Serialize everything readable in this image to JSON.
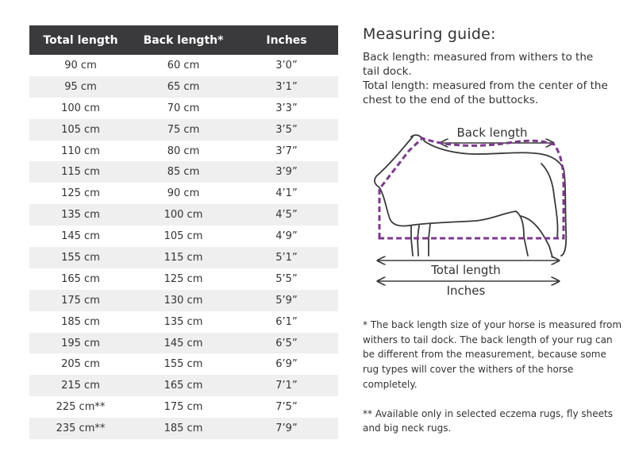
{
  "table": {
    "headers": [
      "Total length",
      "Back length*",
      "Inches"
    ],
    "rows": [
      [
        "90 cm",
        "60 cm",
        "3’0”"
      ],
      [
        "95 cm",
        "65 cm",
        "3’1”"
      ],
      [
        "100 cm",
        "70 cm",
        "3’3”"
      ],
      [
        "105 cm",
        "75 cm",
        "3’5”"
      ],
      [
        "110 cm",
        "80 cm",
        "3’7”"
      ],
      [
        "115 cm",
        "85 cm",
        "3’9”"
      ],
      [
        "125 cm",
        "90 cm",
        "4’1”"
      ],
      [
        "135 cm",
        "100 cm",
        "4’5”"
      ],
      [
        "145 cm",
        "105 cm",
        "4’9”"
      ],
      [
        "155 cm",
        "115 cm",
        "5’1”"
      ],
      [
        "165 cm",
        "125 cm",
        "5’5”"
      ],
      [
        "175 cm",
        "130 cm",
        "5’9”"
      ],
      [
        "185 cm",
        "135 cm",
        "6’1”"
      ],
      [
        "195 cm",
        "145 cm",
        "6’5”"
      ],
      [
        "205 cm",
        "155 cm",
        "6’9”"
      ],
      [
        "215 cm",
        "165 cm",
        "7’1”"
      ],
      [
        "225 cm**",
        "175 cm",
        "7’5”"
      ],
      [
        "235 cm**",
        "185 cm",
        "7’9”"
      ]
    ],
    "header_bg": "#3a3a3c",
    "stripe_bg": "#efefef"
  },
  "guide": {
    "title": "Measuring guide:",
    "back_length_def": "Back length: measured from withers to the tail dock.",
    "total_length_def": "Total length: measured from the center of the chest to the end of the buttocks."
  },
  "diagram": {
    "back_length_label": "Back length",
    "total_length_label": "Total length",
    "inches_label": "Inches",
    "outline_color": "#3a3a3c",
    "rug_color": "#7b3a8c"
  },
  "notes": {
    "back_length_note": "* The back length size of your horse is measured from withers to tail dock. The back length of your rug can be different from the measurement, because some rug types will cover the withers of the horse completely.",
    "availability_note": "** Available only in selected eczema rugs, fly sheets and big neck rugs."
  }
}
